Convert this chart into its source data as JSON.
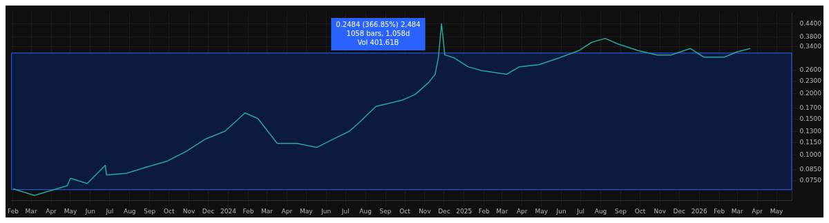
{
  "chart_data": {
    "type": "line",
    "log": "y",
    "grid": true,
    "marker": "none",
    "legend": false,
    "x": [
      "2023-02-01",
      "2023-03-06",
      "2023-04-26",
      "2023-05-01",
      "2023-05-27",
      "2023-06-24",
      "2023-06-26",
      "2023-07-27",
      "2023-08-27",
      "2023-09-27",
      "2023-10-27",
      "2023-11-27",
      "2023-12-27",
      "2024-01-27",
      "2024-02-16",
      "2024-03-17",
      "2024-04-17",
      "2024-05-17",
      "2024-06-17",
      "2024-07-07",
      "2024-07-22",
      "2024-08-17",
      "2024-09-27",
      "2024-10-17",
      "2024-11-07",
      "2024-11-17",
      "2024-11-22",
      "2024-11-27",
      "2024-12-02",
      "2024-12-17",
      "2025-01-07",
      "2025-01-27",
      "2025-02-17",
      "2025-03-08",
      "2025-03-28",
      "2025-04-27",
      "2025-05-28",
      "2025-06-28",
      "2025-07-18",
      "2025-08-08",
      "2025-08-28",
      "2025-09-28",
      "2025-10-28",
      "2025-11-18",
      "2025-12-18",
      "2026-01-08",
      "2026-02-09",
      "2026-02-28",
      "2026-03-21"
    ],
    "series": [
      {
        "color": "#26a69a",
        "values": [
          0.0683,
          0.0635,
          0.0708,
          0.077,
          0.0726,
          0.0891,
          0.0799,
          0.0814,
          0.0873,
          0.0931,
          0.104,
          0.12,
          0.131,
          0.161,
          0.151,
          0.114,
          0.114,
          0.109,
          0.122,
          0.131,
          0.144,
          0.173,
          0.186,
          0.198,
          0.227,
          0.249,
          0.299,
          0.44,
          0.31,
          0.299,
          0.271,
          0.26,
          0.254,
          0.249,
          0.271,
          0.277,
          0.299,
          0.325,
          0.357,
          0.373,
          0.35,
          0.325,
          0.309,
          0.309,
          0.333,
          0.302,
          0.302,
          0.32,
          0.333
        ]
      }
    ],
    "ylim": [
      0.06,
      0.5
    ],
    "yticks": [
      {
        "value": 0.075,
        "label": "0.0750"
      },
      {
        "value": 0.085,
        "label": "0.0850"
      },
      {
        "value": 0.1,
        "label": "0.1000"
      },
      {
        "value": 0.115,
        "label": "0.1150"
      },
      {
        "value": 0.13,
        "label": "0.1300"
      },
      {
        "value": 0.15,
        "label": "0.1500"
      },
      {
        "value": 0.17,
        "label": "0.1700"
      },
      {
        "value": 0.2,
        "label": "0.2000"
      },
      {
        "value": 0.23,
        "label": "0.2300"
      },
      {
        "value": 0.26,
        "label": "0.2600"
      },
      {
        "value": 0.34,
        "label": "0.3400"
      },
      {
        "value": 0.38,
        "label": "0.3800"
      },
      {
        "value": 0.44,
        "label": "0.4400"
      }
    ],
    "xlim": [
      "2023-01-29",
      "2026-05-25"
    ],
    "xticks": [
      {
        "value": "2023-02-01",
        "label": "Feb"
      },
      {
        "value": "2023-03-01",
        "label": "Mar"
      },
      {
        "value": "2023-04-01",
        "label": "Apr"
      },
      {
        "value": "2023-05-01",
        "label": "May"
      },
      {
        "value": "2023-06-01",
        "label": "Jun"
      },
      {
        "value": "2023-07-01",
        "label": "Jul"
      },
      {
        "value": "2023-08-01",
        "label": "Aug"
      },
      {
        "value": "2023-09-01",
        "label": "Sep"
      },
      {
        "value": "2023-10-01",
        "label": "Oct"
      },
      {
        "value": "2023-11-01",
        "label": "Nov"
      },
      {
        "value": "2023-12-01",
        "label": "Dec"
      },
      {
        "value": "2024-01-01",
        "label": "2024"
      },
      {
        "value": "2024-02-01",
        "label": "Feb"
      },
      {
        "value": "2024-03-01",
        "label": "Mar"
      },
      {
        "value": "2024-04-01",
        "label": "Apr"
      },
      {
        "value": "2024-05-01",
        "label": "May"
      },
      {
        "value": "2024-06-01",
        "label": "Jun"
      },
      {
        "value": "2024-07-01",
        "label": "Jul"
      },
      {
        "value": "2024-08-01",
        "label": "Aug"
      },
      {
        "value": "2024-09-01",
        "label": "Sep"
      },
      {
        "value": "2024-10-01",
        "label": "Oct"
      },
      {
        "value": "2024-11-01",
        "label": "Nov"
      },
      {
        "value": "2024-12-01",
        "label": "Dec"
      },
      {
        "value": "2025-01-01",
        "label": "2025"
      },
      {
        "value": "2025-02-01",
        "label": "Feb"
      },
      {
        "value": "2025-03-01",
        "label": "Mar"
      },
      {
        "value": "2025-04-01",
        "label": "Apr"
      },
      {
        "value": "2025-05-01",
        "label": "May"
      },
      {
        "value": "2025-06-01",
        "label": "Jun"
      },
      {
        "value": "2025-07-01",
        "label": "Jul"
      },
      {
        "value": "2025-08-01",
        "label": "Aug"
      },
      {
        "value": "2025-09-01",
        "label": "Sep"
      },
      {
        "value": "2025-10-01",
        "label": "Oct"
      },
      {
        "value": "2025-11-01",
        "label": "Nov"
      },
      {
        "value": "2025-12-01",
        "label": "Dec"
      },
      {
        "value": "2026-01-01",
        "label": "2026"
      },
      {
        "value": "2026-02-01",
        "label": "Feb"
      },
      {
        "value": "2026-03-01",
        "label": "Mar"
      },
      {
        "value": "2026-04-01",
        "label": "Apr"
      },
      {
        "value": "2026-05-01",
        "label": "May"
      }
    ],
    "bands": [
      {
        "axis": "y",
        "from": 0.0677,
        "to": 0.3161,
        "color": "#0c1a40"
      }
    ],
    "annotations": [
      "0.2484 (366.85%) 2,484",
      "1058 bars, 1,058d",
      "Vol 401.61B"
    ]
  }
}
